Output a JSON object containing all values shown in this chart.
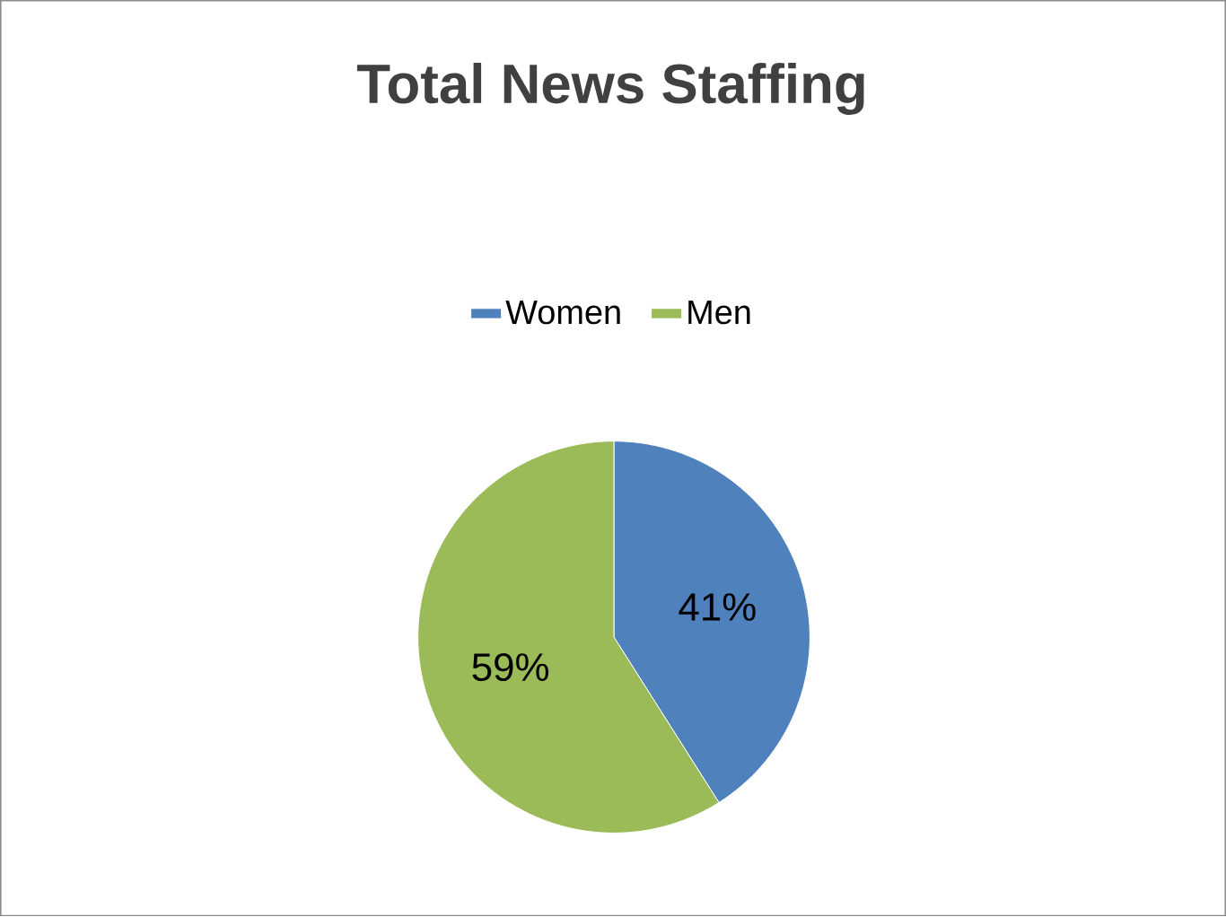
{
  "chart_data": {
    "type": "pie",
    "title": "Total News Staffing",
    "categories": [
      "Women",
      "Men"
    ],
    "values": [
      41,
      59
    ],
    "colors": [
      "#4f81bd",
      "#9bbb59"
    ],
    "value_labels": [
      "41%",
      "59%"
    ],
    "legend": "top"
  }
}
